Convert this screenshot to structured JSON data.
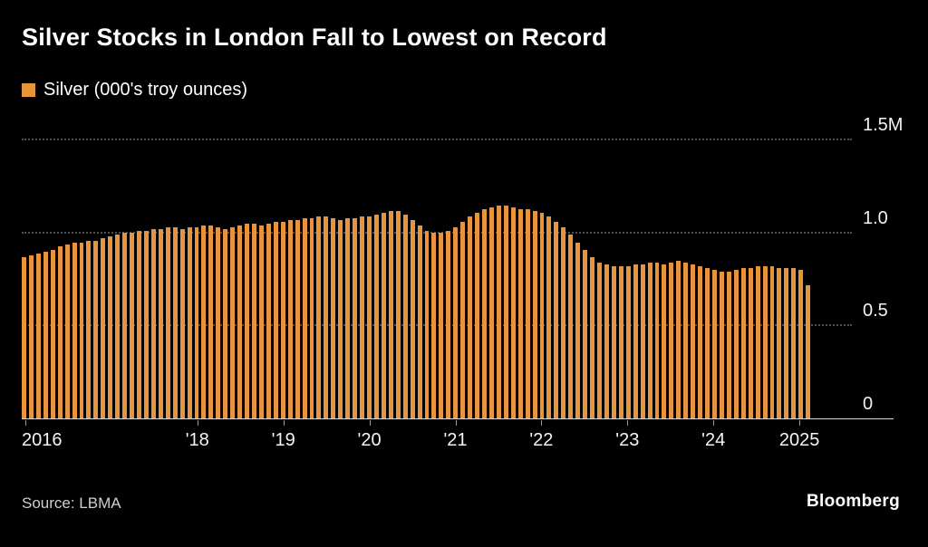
{
  "title": "Silver Stocks in London Fall to Lowest on Record",
  "legend": {
    "label": "Silver (000's troy ounces)",
    "swatch_color": "#E8943C"
  },
  "source": "Source: LBMA",
  "brand": "Bloomberg",
  "colors": {
    "background": "#000000",
    "bar": "#E8943C",
    "grid": "#4f4f4f",
    "baseline": "#d9d9d9",
    "text": "#ffffff",
    "axis_text": "#f2f2f2"
  },
  "chart_data": {
    "type": "bar",
    "title": "Silver Stocks in London Fall to Lowest on Record",
    "series_name": "Silver (000's troy ounces)",
    "x_unit": "month",
    "x_range": [
      "2016",
      "2025"
    ],
    "ylim": [
      0,
      1.5
    ],
    "grid": "dotted-horizontal",
    "legend_position": "top-left",
    "y_ticks": [
      {
        "label": "1.5M",
        "value": 1.5
      },
      {
        "label": "1.0",
        "value": 1.0
      },
      {
        "label": "0.5",
        "value": 0.5
      },
      {
        "label": "0",
        "value": 0
      }
    ],
    "x_ticks": [
      {
        "label": "2016",
        "index": 0
      },
      {
        "label": "'18",
        "index": 24
      },
      {
        "label": "'19",
        "index": 36
      },
      {
        "label": "'20",
        "index": 48
      },
      {
        "label": "'21",
        "index": 60
      },
      {
        "label": "'22",
        "index": 72
      },
      {
        "label": "'23",
        "index": 84
      },
      {
        "label": "'24",
        "index": 96
      },
      {
        "label": "2025",
        "index": 108
      }
    ],
    "values": [
      0.87,
      0.88,
      0.89,
      0.9,
      0.91,
      0.93,
      0.94,
      0.95,
      0.95,
      0.96,
      0.96,
      0.97,
      0.98,
      0.99,
      1.0,
      1.0,
      1.01,
      1.01,
      1.02,
      1.02,
      1.03,
      1.03,
      1.02,
      1.03,
      1.03,
      1.04,
      1.04,
      1.03,
      1.02,
      1.03,
      1.04,
      1.05,
      1.05,
      1.04,
      1.05,
      1.06,
      1.06,
      1.07,
      1.07,
      1.08,
      1.08,
      1.09,
      1.09,
      1.08,
      1.07,
      1.08,
      1.08,
      1.09,
      1.09,
      1.1,
      1.11,
      1.12,
      1.12,
      1.1,
      1.07,
      1.04,
      1.01,
      1.0,
      1.0,
      1.01,
      1.03,
      1.06,
      1.09,
      1.11,
      1.13,
      1.14,
      1.15,
      1.15,
      1.14,
      1.13,
      1.13,
      1.12,
      1.11,
      1.09,
      1.06,
      1.03,
      0.99,
      0.95,
      0.91,
      0.87,
      0.84,
      0.83,
      0.82,
      0.82,
      0.82,
      0.83,
      0.83,
      0.84,
      0.84,
      0.83,
      0.84,
      0.85,
      0.84,
      0.83,
      0.82,
      0.81,
      0.8,
      0.79,
      0.79,
      0.8,
      0.81,
      0.81,
      0.82,
      0.82,
      0.82,
      0.81,
      0.81,
      0.81,
      0.8,
      0.72
    ]
  }
}
